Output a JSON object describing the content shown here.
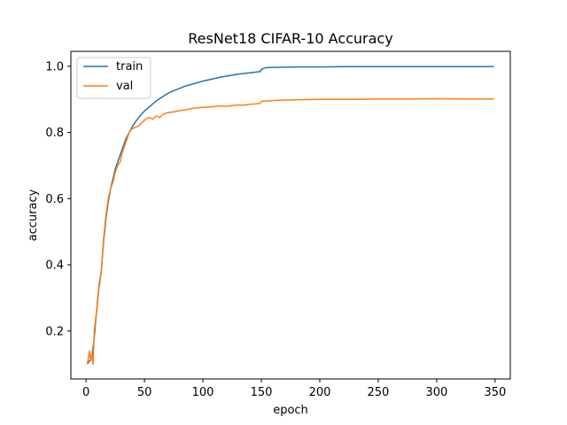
{
  "chart_data": {
    "type": "line",
    "title": "ResNet18 CIFAR-10 Accuracy",
    "xlabel": "epoch",
    "ylabel": "accuracy",
    "xlim": [
      -13,
      363
    ],
    "ylim": [
      0.055,
      1.045
    ],
    "xticks": [
      0,
      50,
      100,
      150,
      200,
      250,
      300,
      350
    ],
    "yticks": [
      0.2,
      0.4,
      0.6,
      0.8,
      1.0
    ],
    "ytick_labels": [
      "0.2",
      "0.4",
      "0.6",
      "0.8",
      "1.0"
    ],
    "grid": false,
    "legend_position": "upper-left",
    "series": [
      {
        "name": "train",
        "color": "#1f77b4",
        "points": [
          [
            1,
            0.1
          ],
          [
            3,
            0.11
          ],
          [
            5,
            0.12
          ],
          [
            7,
            0.18
          ],
          [
            9,
            0.26
          ],
          [
            11,
            0.33
          ],
          [
            13,
            0.38
          ],
          [
            15,
            0.47
          ],
          [
            17,
            0.54
          ],
          [
            19,
            0.59
          ],
          [
            21,
            0.63
          ],
          [
            23,
            0.66
          ],
          [
            25,
            0.69
          ],
          [
            28,
            0.72
          ],
          [
            31,
            0.75
          ],
          [
            34,
            0.78
          ],
          [
            37,
            0.8
          ],
          [
            40,
            0.82
          ],
          [
            45,
            0.845
          ],
          [
            50,
            0.865
          ],
          [
            55,
            0.88
          ],
          [
            60,
            0.895
          ],
          [
            65,
            0.907
          ],
          [
            70,
            0.918
          ],
          [
            75,
            0.926
          ],
          [
            80,
            0.933
          ],
          [
            85,
            0.94
          ],
          [
            90,
            0.945
          ],
          [
            95,
            0.95
          ],
          [
            100,
            0.955
          ],
          [
            105,
            0.959
          ],
          [
            110,
            0.963
          ],
          [
            115,
            0.967
          ],
          [
            120,
            0.97
          ],
          [
            125,
            0.973
          ],
          [
            130,
            0.976
          ],
          [
            135,
            0.978
          ],
          [
            140,
            0.98
          ],
          [
            145,
            0.982
          ],
          [
            149,
            0.984
          ],
          [
            150,
            0.99
          ],
          [
            152,
            0.994
          ],
          [
            155,
            0.996
          ],
          [
            165,
            0.997
          ],
          [
            180,
            0.998
          ],
          [
            200,
            0.998
          ],
          [
            225,
            0.999
          ],
          [
            250,
            0.999
          ],
          [
            275,
            0.999
          ],
          [
            300,
            0.999
          ],
          [
            325,
            0.999
          ],
          [
            349,
            0.999
          ]
        ]
      },
      {
        "name": "val",
        "color": "#ff7f0e",
        "points": [
          [
            1,
            0.1
          ],
          [
            2,
            0.12
          ],
          [
            3,
            0.14
          ],
          [
            4,
            0.11
          ],
          [
            5,
            0.13
          ],
          [
            6,
            0.1
          ],
          [
            7,
            0.2
          ],
          [
            9,
            0.26
          ],
          [
            11,
            0.34
          ],
          [
            13,
            0.38
          ],
          [
            15,
            0.48
          ],
          [
            17,
            0.55
          ],
          [
            19,
            0.6
          ],
          [
            21,
            0.63
          ],
          [
            23,
            0.65
          ],
          [
            25,
            0.68
          ],
          [
            27,
            0.7
          ],
          [
            29,
            0.71
          ],
          [
            31,
            0.74
          ],
          [
            33,
            0.76
          ],
          [
            35,
            0.78
          ],
          [
            37,
            0.8
          ],
          [
            39,
            0.81
          ],
          [
            42,
            0.815
          ],
          [
            45,
            0.82
          ],
          [
            48,
            0.83
          ],
          [
            51,
            0.84
          ],
          [
            54,
            0.845
          ],
          [
            57,
            0.84
          ],
          [
            60,
            0.85
          ],
          [
            63,
            0.845
          ],
          [
            66,
            0.855
          ],
          [
            70,
            0.86
          ],
          [
            75,
            0.862
          ],
          [
            80,
            0.866
          ],
          [
            85,
            0.868
          ],
          [
            90,
            0.872
          ],
          [
            95,
            0.874
          ],
          [
            100,
            0.876
          ],
          [
            105,
            0.877
          ],
          [
            110,
            0.878
          ],
          [
            115,
            0.88
          ],
          [
            120,
            0.879
          ],
          [
            125,
            0.881
          ],
          [
            130,
            0.883
          ],
          [
            135,
            0.882
          ],
          [
            140,
            0.885
          ],
          [
            145,
            0.886
          ],
          [
            149,
            0.888
          ],
          [
            150,
            0.894
          ],
          [
            155,
            0.895
          ],
          [
            165,
            0.897
          ],
          [
            180,
            0.899
          ],
          [
            200,
            0.9
          ],
          [
            225,
            0.9
          ],
          [
            250,
            0.901
          ],
          [
            275,
            0.901
          ],
          [
            300,
            0.902
          ],
          [
            325,
            0.901
          ],
          [
            349,
            0.901
          ]
        ]
      }
    ]
  }
}
